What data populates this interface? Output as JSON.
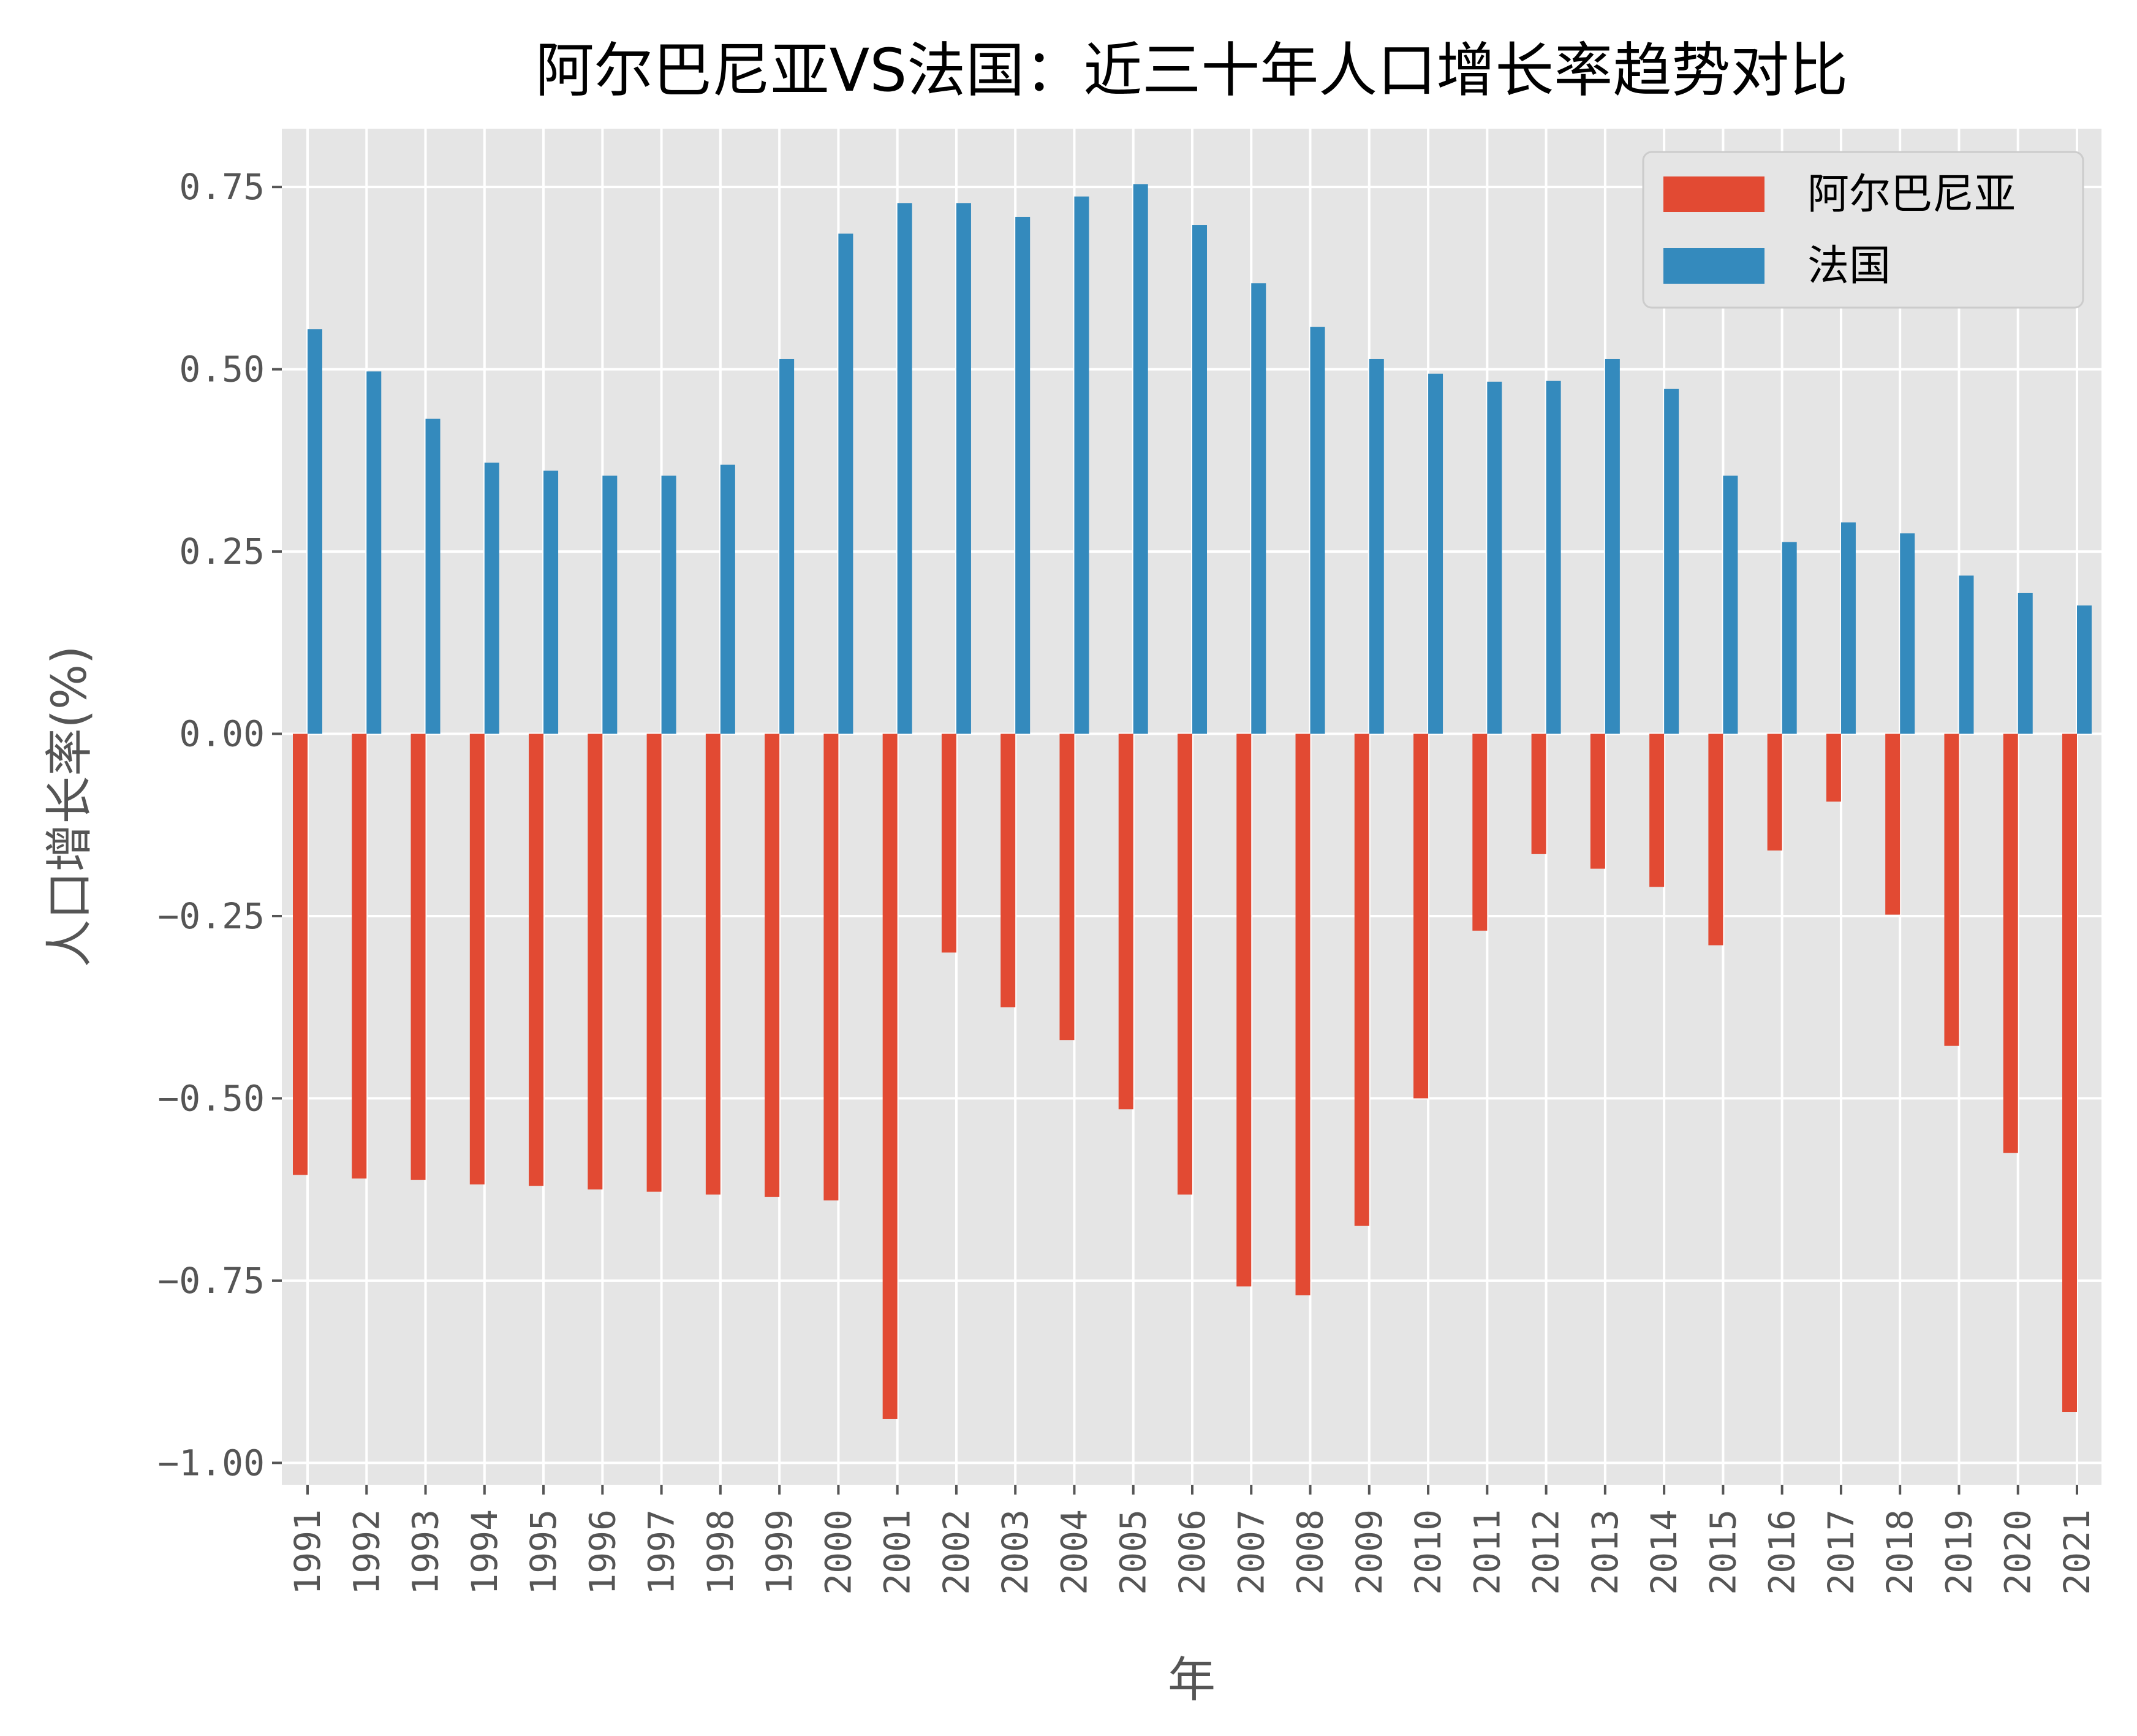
{
  "chart_data": {
    "type": "bar",
    "title": "阿尔巴尼亚VS法国：近三十年人口增长率趋势对比",
    "xlabel": "年",
    "ylabel": "人口增长率(%)",
    "ylim": [
      -1.03,
      0.83
    ],
    "yticks": [
      "0.75",
      "0.50",
      "0.25",
      "0.00",
      "−0.25",
      "−0.50",
      "−0.75",
      "−1.00"
    ],
    "ytick_values": [
      0.75,
      0.5,
      0.25,
      0.0,
      -0.25,
      -0.5,
      -0.75,
      -1.0
    ],
    "grid": true,
    "legend_position": "top-right",
    "categories": [
      "1991",
      "1992",
      "1993",
      "1994",
      "1995",
      "1996",
      "1997",
      "1998",
      "1999",
      "2000",
      "2001",
      "2002",
      "2003",
      "2004",
      "2005",
      "2006",
      "2007",
      "2008",
      "2009",
      "2010",
      "2011",
      "2012",
      "2013",
      "2014",
      "2015",
      "2016",
      "2017",
      "2018",
      "2019",
      "2020",
      "2021"
    ],
    "series": [
      {
        "name": "阿尔巴尼亚",
        "color": "#E24A33",
        "values": [
          -0.605,
          -0.61,
          -0.612,
          -0.618,
          -0.62,
          -0.625,
          -0.628,
          -0.632,
          -0.635,
          -0.64,
          -0.94,
          -0.3,
          -0.375,
          -0.42,
          -0.515,
          -0.632,
          -0.758,
          -0.77,
          -0.675,
          -0.5,
          -0.27,
          -0.165,
          -0.185,
          -0.21,
          -0.29,
          -0.16,
          -0.093,
          -0.248,
          -0.428,
          -0.575,
          -0.93
        ]
      },
      {
        "name": "法国",
        "color": "#348ABD",
        "values": [
          0.555,
          0.497,
          0.432,
          0.372,
          0.361,
          0.354,
          0.354,
          0.369,
          0.514,
          0.686,
          0.728,
          0.728,
          0.709,
          0.737,
          0.754,
          0.698,
          0.618,
          0.558,
          0.514,
          0.494,
          0.483,
          0.484,
          0.514,
          0.473,
          0.354,
          0.263,
          0.29,
          0.275,
          0.217,
          0.193,
          0.176
        ]
      }
    ]
  }
}
